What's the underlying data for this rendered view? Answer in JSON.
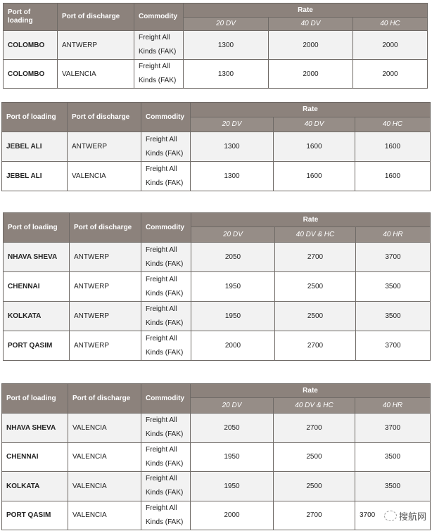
{
  "tables": [
    {
      "headers": {
        "loading": "Port of loading",
        "discharge": "Port of discharge",
        "commodity": "Commodity",
        "rate": "Rate",
        "sizes": [
          "20 DV",
          "40 DV",
          "40 HC"
        ]
      },
      "rows": [
        {
          "loading": "COLOMBO",
          "discharge": "ANTWERP",
          "commodity": "Freight All Kinds (FAK)",
          "rates": [
            "1300",
            "2000",
            "2000"
          ]
        },
        {
          "loading": "COLOMBO",
          "discharge": "VALENCIA",
          "commodity": "Freight All Kinds (FAK)",
          "rates": [
            "1300",
            "2000",
            "2000"
          ]
        }
      ]
    },
    {
      "headers": {
        "loading": "Port of loading",
        "discharge": "Port of discharge",
        "commodity": "Commodity",
        "rate": "Rate",
        "sizes": [
          "20 DV",
          "40 DV",
          "40 HC"
        ]
      },
      "rows": [
        {
          "loading": "JEBEL ALI",
          "discharge": "ANTWERP",
          "commodity": "Freight All Kinds (FAK)",
          "rates": [
            "1300",
            "1600",
            "1600"
          ]
        },
        {
          "loading": "JEBEL ALI",
          "discharge": "VALENCIA",
          "commodity": "Freight All Kinds (FAK)",
          "rates": [
            "1300",
            "1600",
            "1600"
          ]
        }
      ]
    },
    {
      "headers": {
        "loading": "Port of loading",
        "discharge": "Port of discharge",
        "commodity": "Commodity",
        "rate": "Rate",
        "sizes": [
          "20 DV",
          "40 DV & HC",
          "40 HR"
        ]
      },
      "rows": [
        {
          "loading": "NHAVA SHEVA",
          "discharge": "ANTWERP",
          "commodity": "Freight All Kinds (FAK)",
          "rates": [
            "2050",
            "2700",
            "3700"
          ]
        },
        {
          "loading": "CHENNAI",
          "discharge": "ANTWERP",
          "commodity": "Freight All Kinds (FAK)",
          "rates": [
            "1950",
            "2500",
            "3500"
          ]
        },
        {
          "loading": "KOLKATA",
          "discharge": "ANTWERP",
          "commodity": "Freight All Kinds (FAK)",
          "rates": [
            "1950",
            "2500",
            "3500"
          ]
        },
        {
          "loading": "PORT QASIM",
          "discharge": "ANTWERP",
          "commodity": "Freight All Kinds (FAK)",
          "rates": [
            "2000",
            "2700",
            "3700"
          ]
        }
      ]
    },
    {
      "headers": {
        "loading": "Port of loading",
        "discharge": "Port of discharge",
        "commodity": "Commodity",
        "rate": "Rate",
        "sizes": [
          "20 DV",
          "40 DV & HC",
          "40 HR"
        ]
      },
      "rows": [
        {
          "loading": "NHAVA SHEVA",
          "discharge": "VALENCIA",
          "commodity": "Freight All Kinds (FAK)",
          "rates": [
            "2050",
            "2700",
            "3700"
          ]
        },
        {
          "loading": "CHENNAI",
          "discharge": "VALENCIA",
          "commodity": "Freight All Kinds (FAK)",
          "rates": [
            "1950",
            "2500",
            "3500"
          ]
        },
        {
          "loading": "KOLKATA",
          "discharge": "VALENCIA",
          "commodity": "Freight All Kinds (FAK)",
          "rates": [
            "1950",
            "2500",
            "3500"
          ]
        },
        {
          "loading": "PORT QASIM",
          "discharge": "VALENCIA",
          "commodity": "Freight All Kinds (FAK)",
          "rates": [
            "2000",
            "2700",
            "3700"
          ]
        }
      ]
    }
  ],
  "watermark": "搜航网"
}
